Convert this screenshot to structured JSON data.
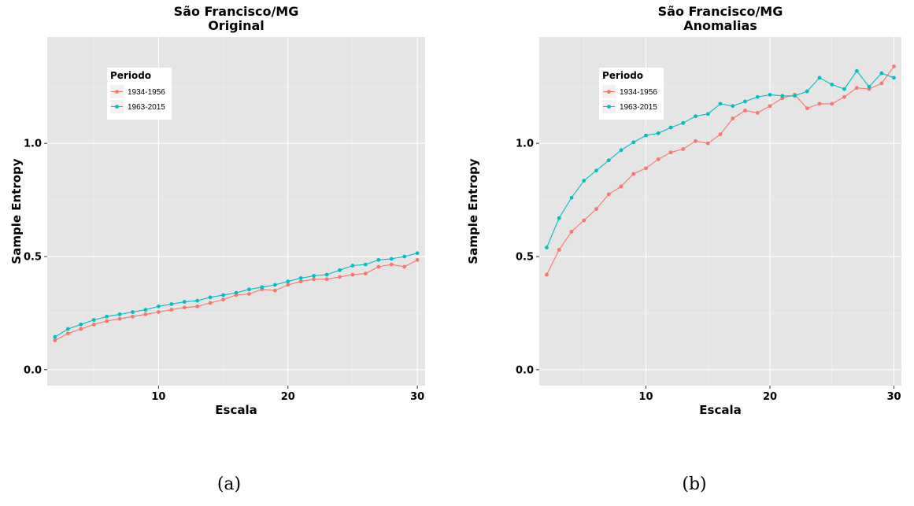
{
  "chart_data": [
    {
      "type": "line",
      "title": "São Francisco/MG",
      "subtitle": "Original",
      "xlabel": "Escala",
      "ylabel": "Sample Entropy",
      "xlim": [
        1.4,
        30.6
      ],
      "ylim": [
        -0.07,
        1.47
      ],
      "x_ticks": [
        10,
        20,
        30
      ],
      "y_ticks": [
        0.0,
        0.5,
        1.0
      ],
      "x_tick_labels": [
        "10",
        "20",
        "30"
      ],
      "y_tick_labels": [
        "0.0",
        "0.5",
        "1.0"
      ],
      "grid": true,
      "legend": {
        "title": "Periodo",
        "position": "top-left"
      },
      "x": [
        2,
        3,
        4,
        5,
        6,
        7,
        8,
        9,
        10,
        11,
        12,
        13,
        14,
        15,
        16,
        17,
        18,
        19,
        20,
        21,
        22,
        23,
        24,
        25,
        26,
        27,
        28,
        29,
        30
      ],
      "series": [
        {
          "name": "1934-1956",
          "color": "#F8766D",
          "values": [
            0.13,
            0.16,
            0.18,
            0.2,
            0.215,
            0.225,
            0.235,
            0.245,
            0.255,
            0.265,
            0.275,
            0.28,
            0.295,
            0.31,
            0.33,
            0.335,
            0.355,
            0.35,
            0.375,
            0.39,
            0.4,
            0.4,
            0.41,
            0.42,
            0.425,
            0.455,
            0.465,
            0.455,
            0.485
          ]
        },
        {
          "name": "1963-2015",
          "color": "#00BFC4",
          "values": [
            0.145,
            0.18,
            0.2,
            0.22,
            0.235,
            0.245,
            0.255,
            0.265,
            0.28,
            0.29,
            0.3,
            0.305,
            0.32,
            0.33,
            0.34,
            0.355,
            0.365,
            0.375,
            0.39,
            0.405,
            0.415,
            0.42,
            0.44,
            0.46,
            0.465,
            0.485,
            0.49,
            0.5,
            0.515
          ]
        }
      ],
      "caption": "(a)"
    },
    {
      "type": "line",
      "title": "São Francisco/MG",
      "subtitle": "Anomalias",
      "xlabel": "Escala",
      "ylabel": "Sample Entropy",
      "xlim": [
        1.4,
        30.6
      ],
      "ylim": [
        -0.07,
        1.47
      ],
      "x_ticks": [
        10,
        20,
        30
      ],
      "y_ticks": [
        0.0,
        0.5,
        1.0
      ],
      "x_tick_labels": [
        "10",
        "20",
        "30"
      ],
      "y_tick_labels": [
        "0.0",
        "0.5",
        "1.0"
      ],
      "grid": true,
      "legend": {
        "title": "Periodo",
        "position": "top-left"
      },
      "x": [
        2,
        3,
        4,
        5,
        6,
        7,
        8,
        9,
        10,
        11,
        12,
        13,
        14,
        15,
        16,
        17,
        18,
        19,
        20,
        21,
        22,
        23,
        24,
        25,
        26,
        27,
        28,
        29,
        30
      ],
      "series": [
        {
          "name": "1934-1956",
          "color": "#F8766D",
          "values": [
            0.42,
            0.53,
            0.61,
            0.66,
            0.71,
            0.775,
            0.81,
            0.865,
            0.89,
            0.93,
            0.96,
            0.975,
            1.01,
            1.0,
            1.04,
            1.11,
            1.145,
            1.135,
            1.165,
            1.2,
            1.215,
            1.155,
            1.175,
            1.175,
            1.205,
            1.245,
            1.24,
            1.265,
            1.34
          ]
        },
        {
          "name": "1963-2015",
          "color": "#00BFC4",
          "values": [
            0.54,
            0.67,
            0.76,
            0.835,
            0.88,
            0.925,
            0.97,
            1.005,
            1.035,
            1.045,
            1.07,
            1.09,
            1.12,
            1.13,
            1.175,
            1.165,
            1.185,
            1.205,
            1.215,
            1.21,
            1.21,
            1.23,
            1.29,
            1.26,
            1.24,
            1.32,
            1.25,
            1.31,
            1.29
          ]
        }
      ],
      "caption": "(b)"
    }
  ]
}
